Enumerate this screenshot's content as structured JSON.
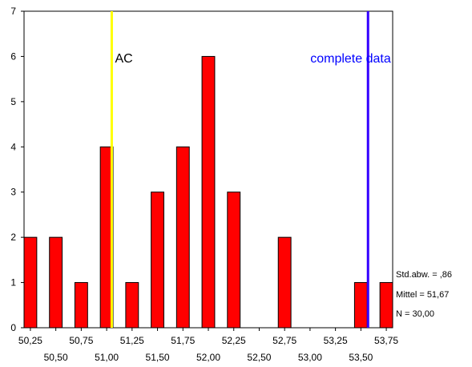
{
  "chart_data": {
    "type": "bar",
    "title": "",
    "xlabel": "",
    "ylabel": "",
    "ylim": [
      0,
      7
    ],
    "yticks": [
      "0",
      "1",
      "2",
      "3",
      "4",
      "5",
      "6",
      "7"
    ],
    "bin_width": 0.125,
    "bin_centers": [
      50.25,
      50.375,
      50.5,
      50.625,
      50.75,
      50.875,
      51.0,
      51.125,
      51.25,
      51.375,
      51.5,
      51.625,
      51.75,
      51.875,
      52.0,
      52.125,
      52.25,
      52.375,
      52.5,
      52.625,
      52.75,
      52.875,
      53.0,
      53.125,
      53.25,
      53.375,
      53.5,
      53.625,
      53.75
    ],
    "counts": [
      2,
      0,
      2,
      0,
      1,
      0,
      4,
      0,
      1,
      0,
      3,
      0,
      4,
      0,
      6,
      0,
      3,
      0,
      0,
      0,
      2,
      0,
      0,
      0,
      0,
      0,
      1,
      0,
      1
    ],
    "histogram": [
      {
        "x": 50.25,
        "count": 2
      },
      {
        "x": 50.5,
        "count": 2
      },
      {
        "x": 50.75,
        "count": 1
      },
      {
        "x": 51.0,
        "count": 4
      },
      {
        "x": 51.25,
        "count": 1
      },
      {
        "x": 51.5,
        "count": 3
      },
      {
        "x": 51.75,
        "count": 4
      },
      {
        "x": 52.0,
        "count": 6
      },
      {
        "x": 52.25,
        "count": 3
      },
      {
        "x": 52.75,
        "count": 2
      },
      {
        "x": 53.5,
        "count": 1
      },
      {
        "x": 53.75,
        "count": 1
      }
    ],
    "xticks_upper": [
      "50,25",
      "50,75",
      "51,25",
      "51,75",
      "52,25",
      "52,75",
      "53,25",
      "53,75"
    ],
    "xticks_lower": [
      "50,50",
      "51,00",
      "51,50",
      "52,00",
      "52,50",
      "53,00",
      "53,50"
    ],
    "grid": false,
    "bar_color": "#ff0000",
    "vertical_lines": [
      {
        "label": "AC",
        "x": 51.05,
        "color": "#ffff00",
        "label_color": "#000000"
      },
      {
        "label": "complete data",
        "x": 53.57,
        "color": "#3300ff",
        "label_color": "#0000ff"
      }
    ],
    "stats": {
      "std": "Std.abw. = ,86",
      "mean": "Mittel = 51,67",
      "n": "N = 30,00"
    }
  }
}
